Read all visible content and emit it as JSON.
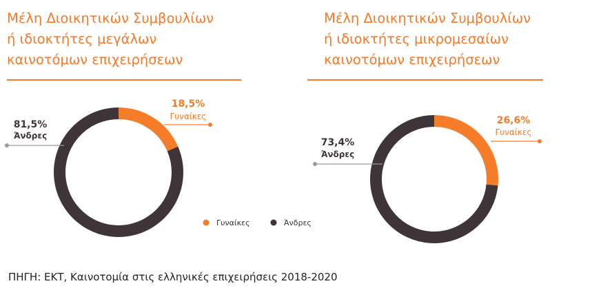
{
  "colors": {
    "women": "#f57c29",
    "men": "#3f3539",
    "accent": "#f47a2a",
    "leader": "#9b9b9b"
  },
  "legend": {
    "women": "Γυναίκες",
    "men": "Άνδρες"
  },
  "source": "ΠΗΓΗ: ΕΚΤ, Καινοτομία στις ελληνικές επιχειρήσεις 2018-2020",
  "chart_data": [
    {
      "type": "pie",
      "title_lines": [
        "Μέλη Διοικητικών Συμβουλίων",
        "ή ιδιοκτήτες μεγάλων",
        "καινοτόμων επιχειρήσεων"
      ],
      "slices": [
        {
          "label": "Γυναίκες",
          "value": 18.5,
          "display": "18,5%"
        },
        {
          "label": "Άνδρες",
          "value": 81.5,
          "display": "81,5%"
        }
      ]
    },
    {
      "type": "pie",
      "title_lines": [
        "Μέλη Διοικητικών Συμβουλίων",
        "ή ιδιοκτήτες μικρομεσαίων",
        "καινοτόμων επιχειρήσεων"
      ],
      "slices": [
        {
          "label": "Γυναίκες",
          "value": 26.6,
          "display": "26,6%"
        },
        {
          "label": "Άνδρες",
          "value": 73.4,
          "display": "73,4%"
        }
      ]
    }
  ]
}
